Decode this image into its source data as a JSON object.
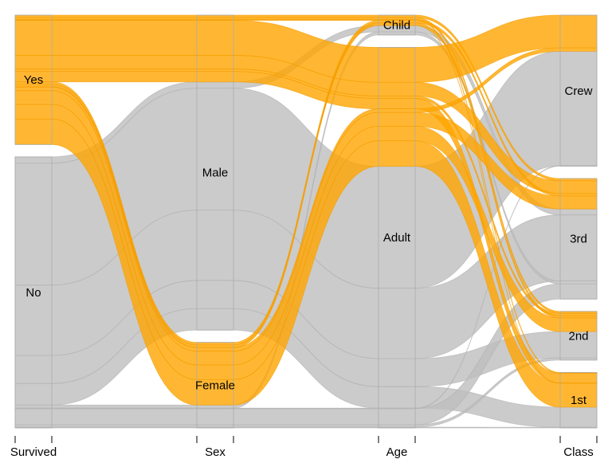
{
  "chart_data": {
    "type": "alluvial",
    "title": "",
    "axes": [
      "Survived",
      "Sex",
      "Age",
      "Class"
    ],
    "categories": {
      "Survived": [
        "Yes",
        "No"
      ],
      "Sex": [
        "Male",
        "Female"
      ],
      "Age": [
        "Child",
        "Adult"
      ],
      "Class": [
        "Crew",
        "3rd",
        "2nd",
        "1st"
      ]
    },
    "highlight": {
      "axis": "Survived",
      "value": "Yes"
    },
    "colors": {
      "highlight": "#FFA500",
      "other": "#BEBEBE",
      "border": "#AAAAAA"
    },
    "flows": [
      {
        "Survived": "Yes",
        "Sex": "Male",
        "Age": "Child",
        "Class": "1st",
        "n": 5
      },
      {
        "Survived": "Yes",
        "Sex": "Male",
        "Age": "Child",
        "Class": "2nd",
        "n": 11
      },
      {
        "Survived": "Yes",
        "Sex": "Male",
        "Age": "Child",
        "Class": "3rd",
        "n": 13
      },
      {
        "Survived": "Yes",
        "Sex": "Male",
        "Age": "Adult",
        "Class": "Crew",
        "n": 192
      },
      {
        "Survived": "Yes",
        "Sex": "Male",
        "Age": "Adult",
        "Class": "3rd",
        "n": 75
      },
      {
        "Survived": "Yes",
        "Sex": "Male",
        "Age": "Adult",
        "Class": "2nd",
        "n": 14
      },
      {
        "Survived": "Yes",
        "Sex": "Male",
        "Age": "Adult",
        "Class": "1st",
        "n": 57
      },
      {
        "Survived": "Yes",
        "Sex": "Female",
        "Age": "Child",
        "Class": "1st",
        "n": 1
      },
      {
        "Survived": "Yes",
        "Sex": "Female",
        "Age": "Child",
        "Class": "2nd",
        "n": 13
      },
      {
        "Survived": "Yes",
        "Sex": "Female",
        "Age": "Child",
        "Class": "3rd",
        "n": 14
      },
      {
        "Survived": "Yes",
        "Sex": "Female",
        "Age": "Adult",
        "Class": "Crew",
        "n": 20
      },
      {
        "Survived": "Yes",
        "Sex": "Female",
        "Age": "Adult",
        "Class": "3rd",
        "n": 76
      },
      {
        "Survived": "Yes",
        "Sex": "Female",
        "Age": "Adult",
        "Class": "2nd",
        "n": 80
      },
      {
        "Survived": "Yes",
        "Sex": "Female",
        "Age": "Adult",
        "Class": "1st",
        "n": 140
      },
      {
        "Survived": "No",
        "Sex": "Male",
        "Age": "Child",
        "Class": "3rd",
        "n": 35
      },
      {
        "Survived": "No",
        "Sex": "Male",
        "Age": "Adult",
        "Class": "Crew",
        "n": 670
      },
      {
        "Survived": "No",
        "Sex": "Male",
        "Age": "Adult",
        "Class": "3rd",
        "n": 387
      },
      {
        "Survived": "No",
        "Sex": "Male",
        "Age": "Adult",
        "Class": "2nd",
        "n": 154
      },
      {
        "Survived": "No",
        "Sex": "Male",
        "Age": "Adult",
        "Class": "1st",
        "n": 118
      },
      {
        "Survived": "No",
        "Sex": "Female",
        "Age": "Child",
        "Class": "3rd",
        "n": 17
      },
      {
        "Survived": "No",
        "Sex": "Female",
        "Age": "Adult",
        "Class": "Crew",
        "n": 3
      },
      {
        "Survived": "No",
        "Sex": "Female",
        "Age": "Adult",
        "Class": "3rd",
        "n": 89
      },
      {
        "Survived": "No",
        "Sex": "Female",
        "Age": "Adult",
        "Class": "2nd",
        "n": 13
      },
      {
        "Survived": "No",
        "Sex": "Female",
        "Age": "Adult",
        "Class": "1st",
        "n": 4
      }
    ]
  }
}
